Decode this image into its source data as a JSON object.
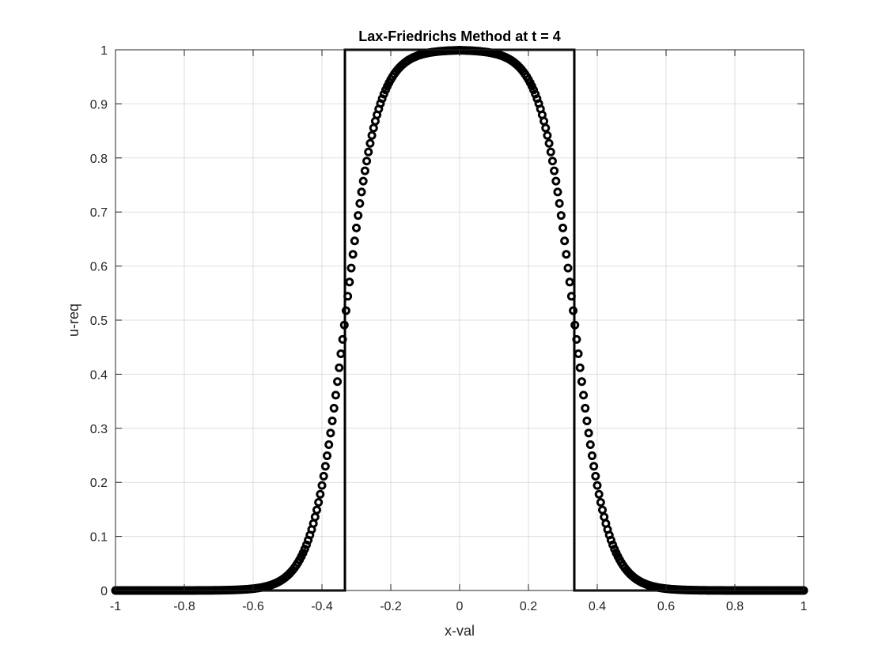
{
  "chart_data": {
    "type": "line",
    "title": "Lax-Friedrichs Method at t = 4",
    "xlabel": "x-val",
    "ylabel": "u-req",
    "xlim": [
      -1,
      1
    ],
    "ylim": [
      0,
      1
    ],
    "grid": true,
    "x_ticks": [
      "-1",
      "-0.8",
      "-0.6",
      "-0.4",
      "-0.2",
      "0",
      "0.2",
      "0.4",
      "0.6",
      "0.8",
      "1"
    ],
    "y_ticks": [
      "0",
      "0.1",
      "0.2",
      "0.3",
      "0.4",
      "0.5",
      "0.6",
      "0.7",
      "0.8",
      "0.9",
      "1"
    ],
    "x_tick_values": [
      -1,
      -0.8,
      -0.6,
      -0.4,
      -0.2,
      0,
      0.2,
      0.4,
      0.6,
      0.8,
      1
    ],
    "y_tick_values": [
      0,
      0.1,
      0.2,
      0.3,
      0.4,
      0.5,
      0.6,
      0.7,
      0.8,
      0.9,
      1
    ],
    "series": [
      {
        "style": "line",
        "color": "#000000",
        "x": [
          -1,
          -0.3333,
          -0.3333,
          0.3333,
          0.3333,
          1
        ],
        "y": [
          0,
          0,
          1,
          1,
          0,
          0
        ]
      },
      {
        "style": "circle-markers",
        "color": "#000000",
        "x_start": -1,
        "x_end": 1,
        "point_count": 401,
        "half_width": 0.3333,
        "transition_width": 0.3,
        "edge_value": 0.5,
        "peak_value": 1
      }
    ]
  }
}
